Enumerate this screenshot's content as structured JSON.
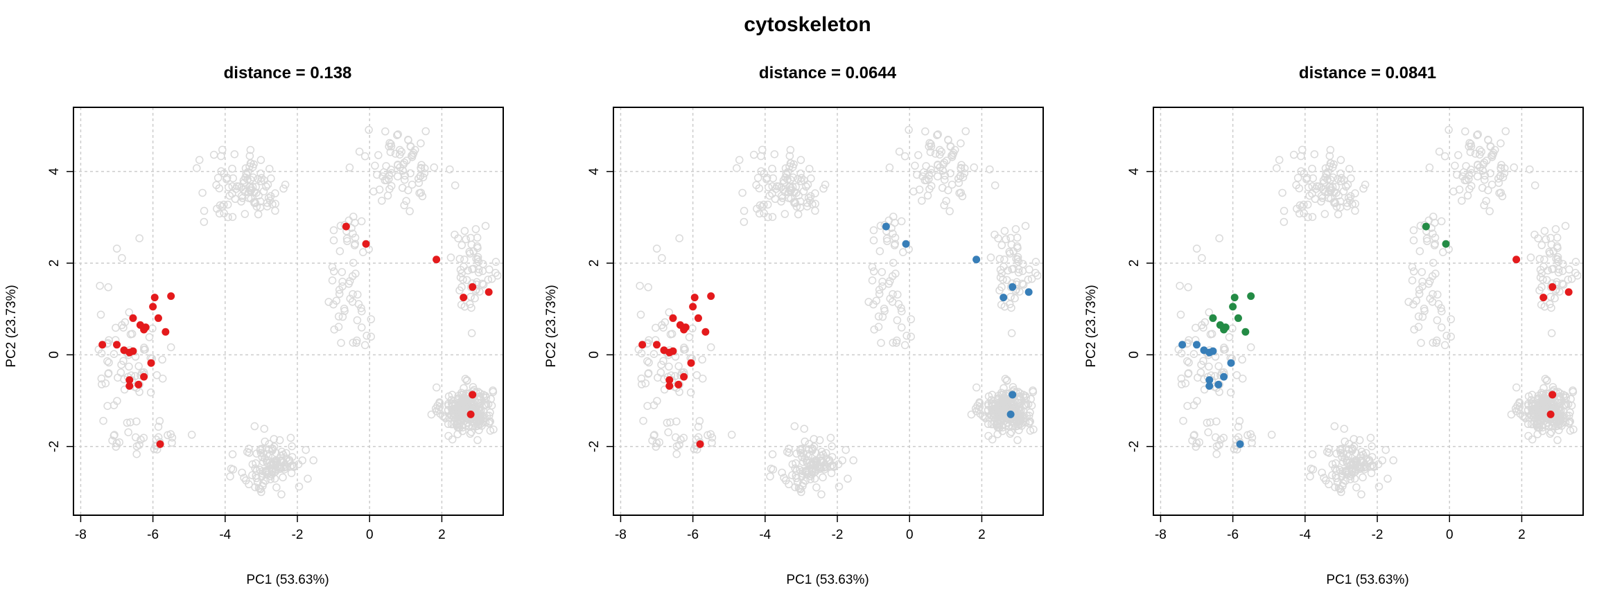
{
  "figure_title": "cytoskeleton",
  "colors": {
    "background_points": "#d9d9d9",
    "red": "#e41a1c",
    "blue": "#377eb8",
    "green": "#238b45",
    "grid": "#cccccc"
  },
  "chart_data": [
    {
      "type": "scatter",
      "title": "distance =  0.138",
      "xlabel": "PC1 (53.63%)",
      "ylabel": "PC2 (23.73%)",
      "xlim": [
        -8.2,
        3.7
      ],
      "ylim": [
        -3.5,
        5.4
      ],
      "xticks": [
        -8,
        -6,
        -4,
        -2,
        0,
        2
      ],
      "yticks": [
        -2,
        0,
        2,
        4
      ],
      "grid": true,
      "legend": "none",
      "series": [
        {
          "color": "red",
          "points": [
            [
              -7.4,
              0.22
            ],
            [
              -7.0,
              0.22
            ],
            [
              -6.8,
              0.1
            ],
            [
              -6.65,
              0.05
            ],
            [
              -6.55,
              0.08
            ],
            [
              -6.65,
              -0.55
            ],
            [
              -6.65,
              -0.68
            ],
            [
              -6.4,
              -0.65
            ],
            [
              -6.25,
              -0.48
            ],
            [
              -6.05,
              -0.18
            ],
            [
              -6.55,
              0.8
            ],
            [
              -6.35,
              0.65
            ],
            [
              -6.25,
              0.55
            ],
            [
              -6.2,
              0.6
            ],
            [
              -6.0,
              1.05
            ],
            [
              -5.95,
              1.25
            ],
            [
              -5.85,
              0.8
            ],
            [
              -5.65,
              0.5
            ],
            [
              -5.5,
              1.28
            ],
            [
              -5.8,
              -1.95
            ],
            [
              -0.65,
              2.8
            ],
            [
              -0.1,
              2.42
            ],
            [
              1.85,
              2.08
            ],
            [
              2.6,
              1.25
            ],
            [
              2.85,
              1.48
            ],
            [
              3.3,
              1.37
            ],
            [
              2.85,
              -0.87
            ],
            [
              2.8,
              -1.3
            ]
          ]
        }
      ]
    },
    {
      "type": "scatter",
      "title": "distance =  0.0644",
      "xlabel": "PC1 (53.63%)",
      "ylabel": "PC2 (23.73%)",
      "xlim": [
        -8.2,
        3.7
      ],
      "ylim": [
        -3.5,
        5.4
      ],
      "xticks": [
        -8,
        -6,
        -4,
        -2,
        0,
        2
      ],
      "yticks": [
        -2,
        0,
        2,
        4
      ],
      "grid": true,
      "legend": "none",
      "series": [
        {
          "color": "red",
          "points": [
            [
              -7.4,
              0.22
            ],
            [
              -7.0,
              0.22
            ],
            [
              -6.8,
              0.1
            ],
            [
              -6.65,
              0.05
            ],
            [
              -6.55,
              0.08
            ],
            [
              -6.65,
              -0.55
            ],
            [
              -6.65,
              -0.68
            ],
            [
              -6.4,
              -0.65
            ],
            [
              -6.25,
              -0.48
            ],
            [
              -6.05,
              -0.18
            ],
            [
              -6.55,
              0.8
            ],
            [
              -6.35,
              0.65
            ],
            [
              -6.25,
              0.55
            ],
            [
              -6.2,
              0.6
            ],
            [
              -6.0,
              1.05
            ],
            [
              -5.95,
              1.25
            ],
            [
              -5.85,
              0.8
            ],
            [
              -5.65,
              0.5
            ],
            [
              -5.5,
              1.28
            ],
            [
              -5.8,
              -1.95
            ]
          ]
        },
        {
          "color": "blue",
          "points": [
            [
              -0.65,
              2.8
            ],
            [
              -0.1,
              2.42
            ],
            [
              1.85,
              2.08
            ],
            [
              2.6,
              1.25
            ],
            [
              2.85,
              1.48
            ],
            [
              3.3,
              1.37
            ],
            [
              2.85,
              -0.87
            ],
            [
              2.8,
              -1.3
            ]
          ]
        }
      ]
    },
    {
      "type": "scatter",
      "title": "distance =  0.0841",
      "xlabel": "PC1 (53.63%)",
      "ylabel": "PC2 (23.73%)",
      "xlim": [
        -8.2,
        3.7
      ],
      "ylim": [
        -3.5,
        5.4
      ],
      "xticks": [
        -8,
        -6,
        -4,
        -2,
        0,
        2
      ],
      "yticks": [
        -2,
        0,
        2,
        4
      ],
      "grid": true,
      "legend": "none",
      "series": [
        {
          "color": "blue",
          "points": [
            [
              -7.4,
              0.22
            ],
            [
              -7.0,
              0.22
            ],
            [
              -6.8,
              0.1
            ],
            [
              -6.65,
              0.05
            ],
            [
              -6.55,
              0.08
            ],
            [
              -6.65,
              -0.55
            ],
            [
              -6.65,
              -0.68
            ],
            [
              -6.4,
              -0.65
            ],
            [
              -6.25,
              -0.48
            ],
            [
              -6.05,
              -0.18
            ],
            [
              -5.8,
              -1.95
            ]
          ]
        },
        {
          "color": "green",
          "points": [
            [
              -6.55,
              0.8
            ],
            [
              -6.35,
              0.65
            ],
            [
              -6.25,
              0.55
            ],
            [
              -6.2,
              0.6
            ],
            [
              -6.0,
              1.05
            ],
            [
              -5.95,
              1.25
            ],
            [
              -5.85,
              0.8
            ],
            [
              -5.65,
              0.5
            ],
            [
              -5.5,
              1.28
            ],
            [
              -0.65,
              2.8
            ],
            [
              -0.1,
              2.42
            ]
          ]
        },
        {
          "color": "red",
          "points": [
            [
              1.85,
              2.08
            ],
            [
              2.6,
              1.25
            ],
            [
              2.85,
              1.48
            ],
            [
              3.3,
              1.37
            ],
            [
              2.85,
              -0.87
            ],
            [
              2.8,
              -1.3
            ]
          ]
        }
      ]
    }
  ]
}
